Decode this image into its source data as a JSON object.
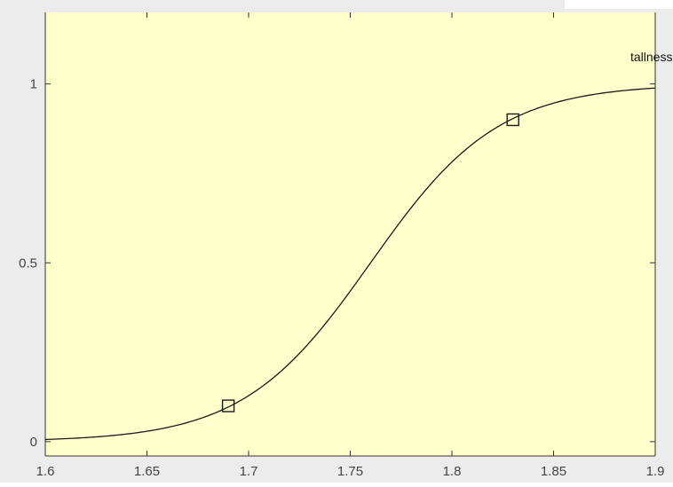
{
  "colors": {
    "plot_background": "#ffffcc",
    "figure_background": "#ececec",
    "curve": "#1a1a1a",
    "axis": "#333333",
    "tick_text": "#444444"
  },
  "chart_data": {
    "type": "line",
    "title": "",
    "xlabel": "",
    "ylabel": "",
    "xlim": [
      1.6,
      1.9
    ],
    "ylim": [
      -0.04,
      1.2
    ],
    "grid": false,
    "x_ticks": [
      1.6,
      1.65,
      1.7,
      1.75,
      1.8,
      1.85,
      1.9
    ],
    "x_tick_labels": [
      "1.6",
      "1.65",
      "1.7",
      "1.75",
      "1.8",
      "1.85",
      "1.9"
    ],
    "y_ticks": [
      0,
      0.5,
      1
    ],
    "y_tick_labels": [
      "0",
      "0.5",
      "1"
    ],
    "series": [
      {
        "name": "tallness",
        "label_position": "top-right",
        "curve": "sigmoid",
        "center": 1.76,
        "steepness": 31.9,
        "x": [
          1.6,
          1.625,
          1.65,
          1.675,
          1.69,
          1.7,
          1.725,
          1.75,
          1.76,
          1.775,
          1.8,
          1.825,
          1.83,
          1.85,
          1.875,
          1.9
        ],
        "y": [
          0.006,
          0.013,
          0.028,
          0.061,
          0.1,
          0.128,
          0.247,
          0.42,
          0.5,
          0.618,
          0.783,
          0.88,
          0.9,
          0.946,
          0.973,
          0.989
        ]
      }
    ],
    "markers": [
      {
        "x": 1.69,
        "y": 0.1,
        "shape": "square"
      },
      {
        "x": 1.83,
        "y": 0.9,
        "shape": "square"
      }
    ]
  }
}
